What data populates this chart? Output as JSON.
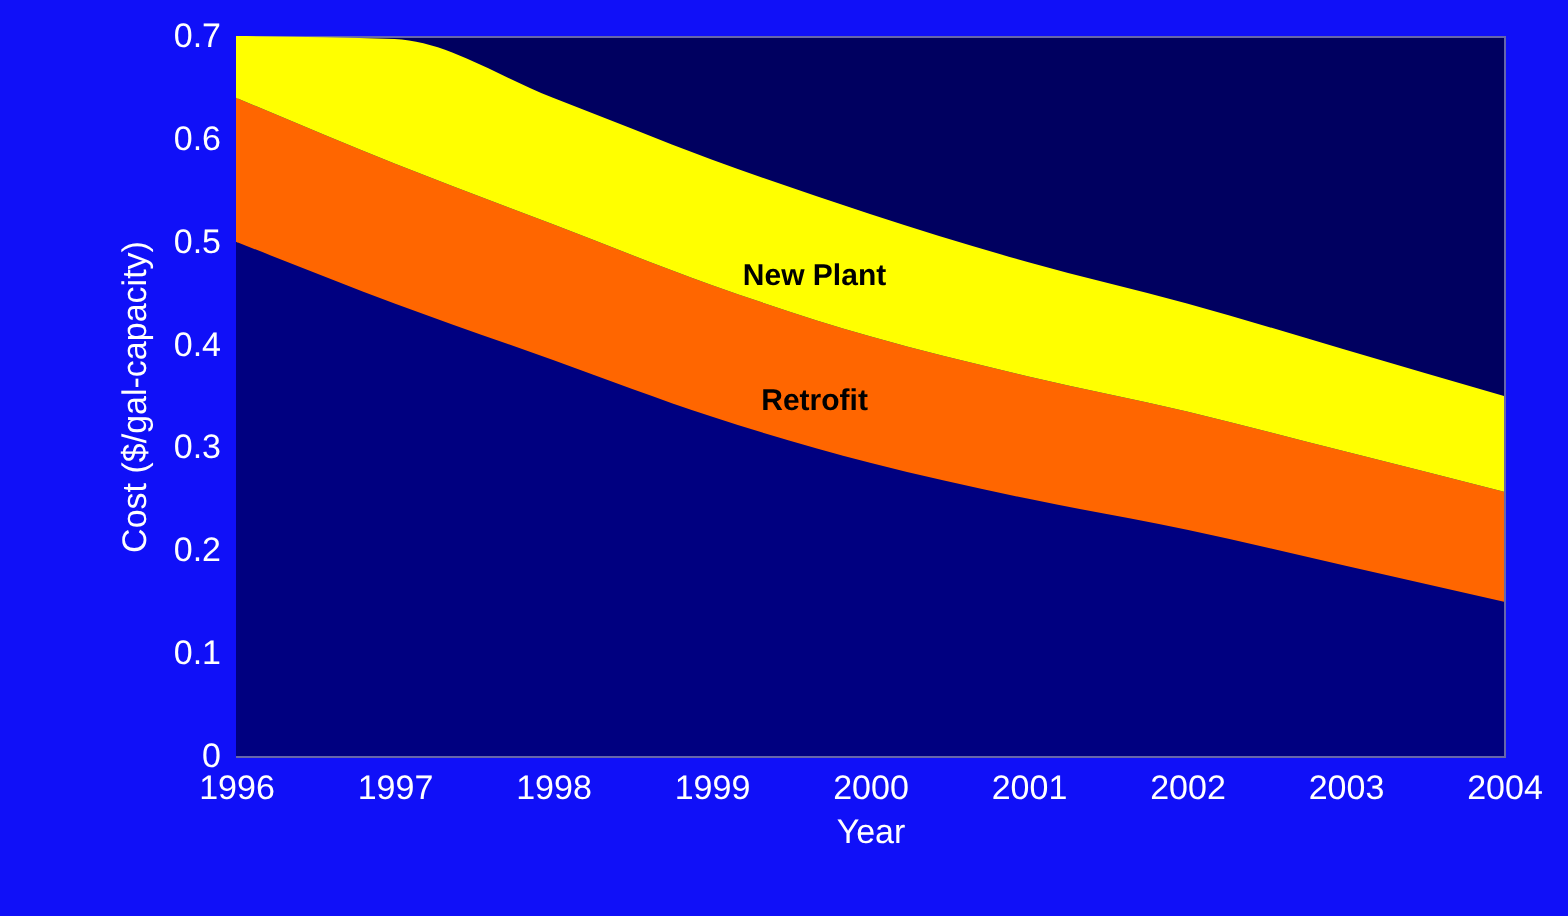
{
  "chart_data": {
    "type": "area",
    "stacked": true,
    "xlabel": "Year",
    "ylabel": "Cost ($/gal-capacity)",
    "x": [
      1996,
      1997,
      1998,
      1999,
      2000,
      2001,
      2002,
      2003,
      2004
    ],
    "series": [
      {
        "color": "#000080",
        "values": [
          0.5,
          0.44,
          0.385,
          0.33,
          0.285,
          0.25,
          0.22,
          0.185,
          0.15
        ]
      },
      {
        "name": "Retrofit",
        "color": "#ff6600",
        "values": [
          0.14,
          0.136,
          0.132,
          0.128,
          0.123,
          0.119,
          0.115,
          0.111,
          0.107
        ]
      },
      {
        "name": "New Plant",
        "color": "#ffff00",
        "values": [
          0.06,
          0.121,
          0.123,
          0.122,
          0.119,
          0.111,
          0.105,
          0.099,
          0.093
        ]
      }
    ],
    "xlim": [
      1996,
      2004
    ],
    "xticks": [
      1996,
      1997,
      1998,
      1999,
      2000,
      2001,
      2002,
      2003,
      2004
    ],
    "ylim": [
      0,
      0.7
    ],
    "yticks": [
      0,
      0.1,
      0.2,
      0.3,
      0.4,
      0.5,
      0.6,
      0.7
    ],
    "grid": false
  }
}
